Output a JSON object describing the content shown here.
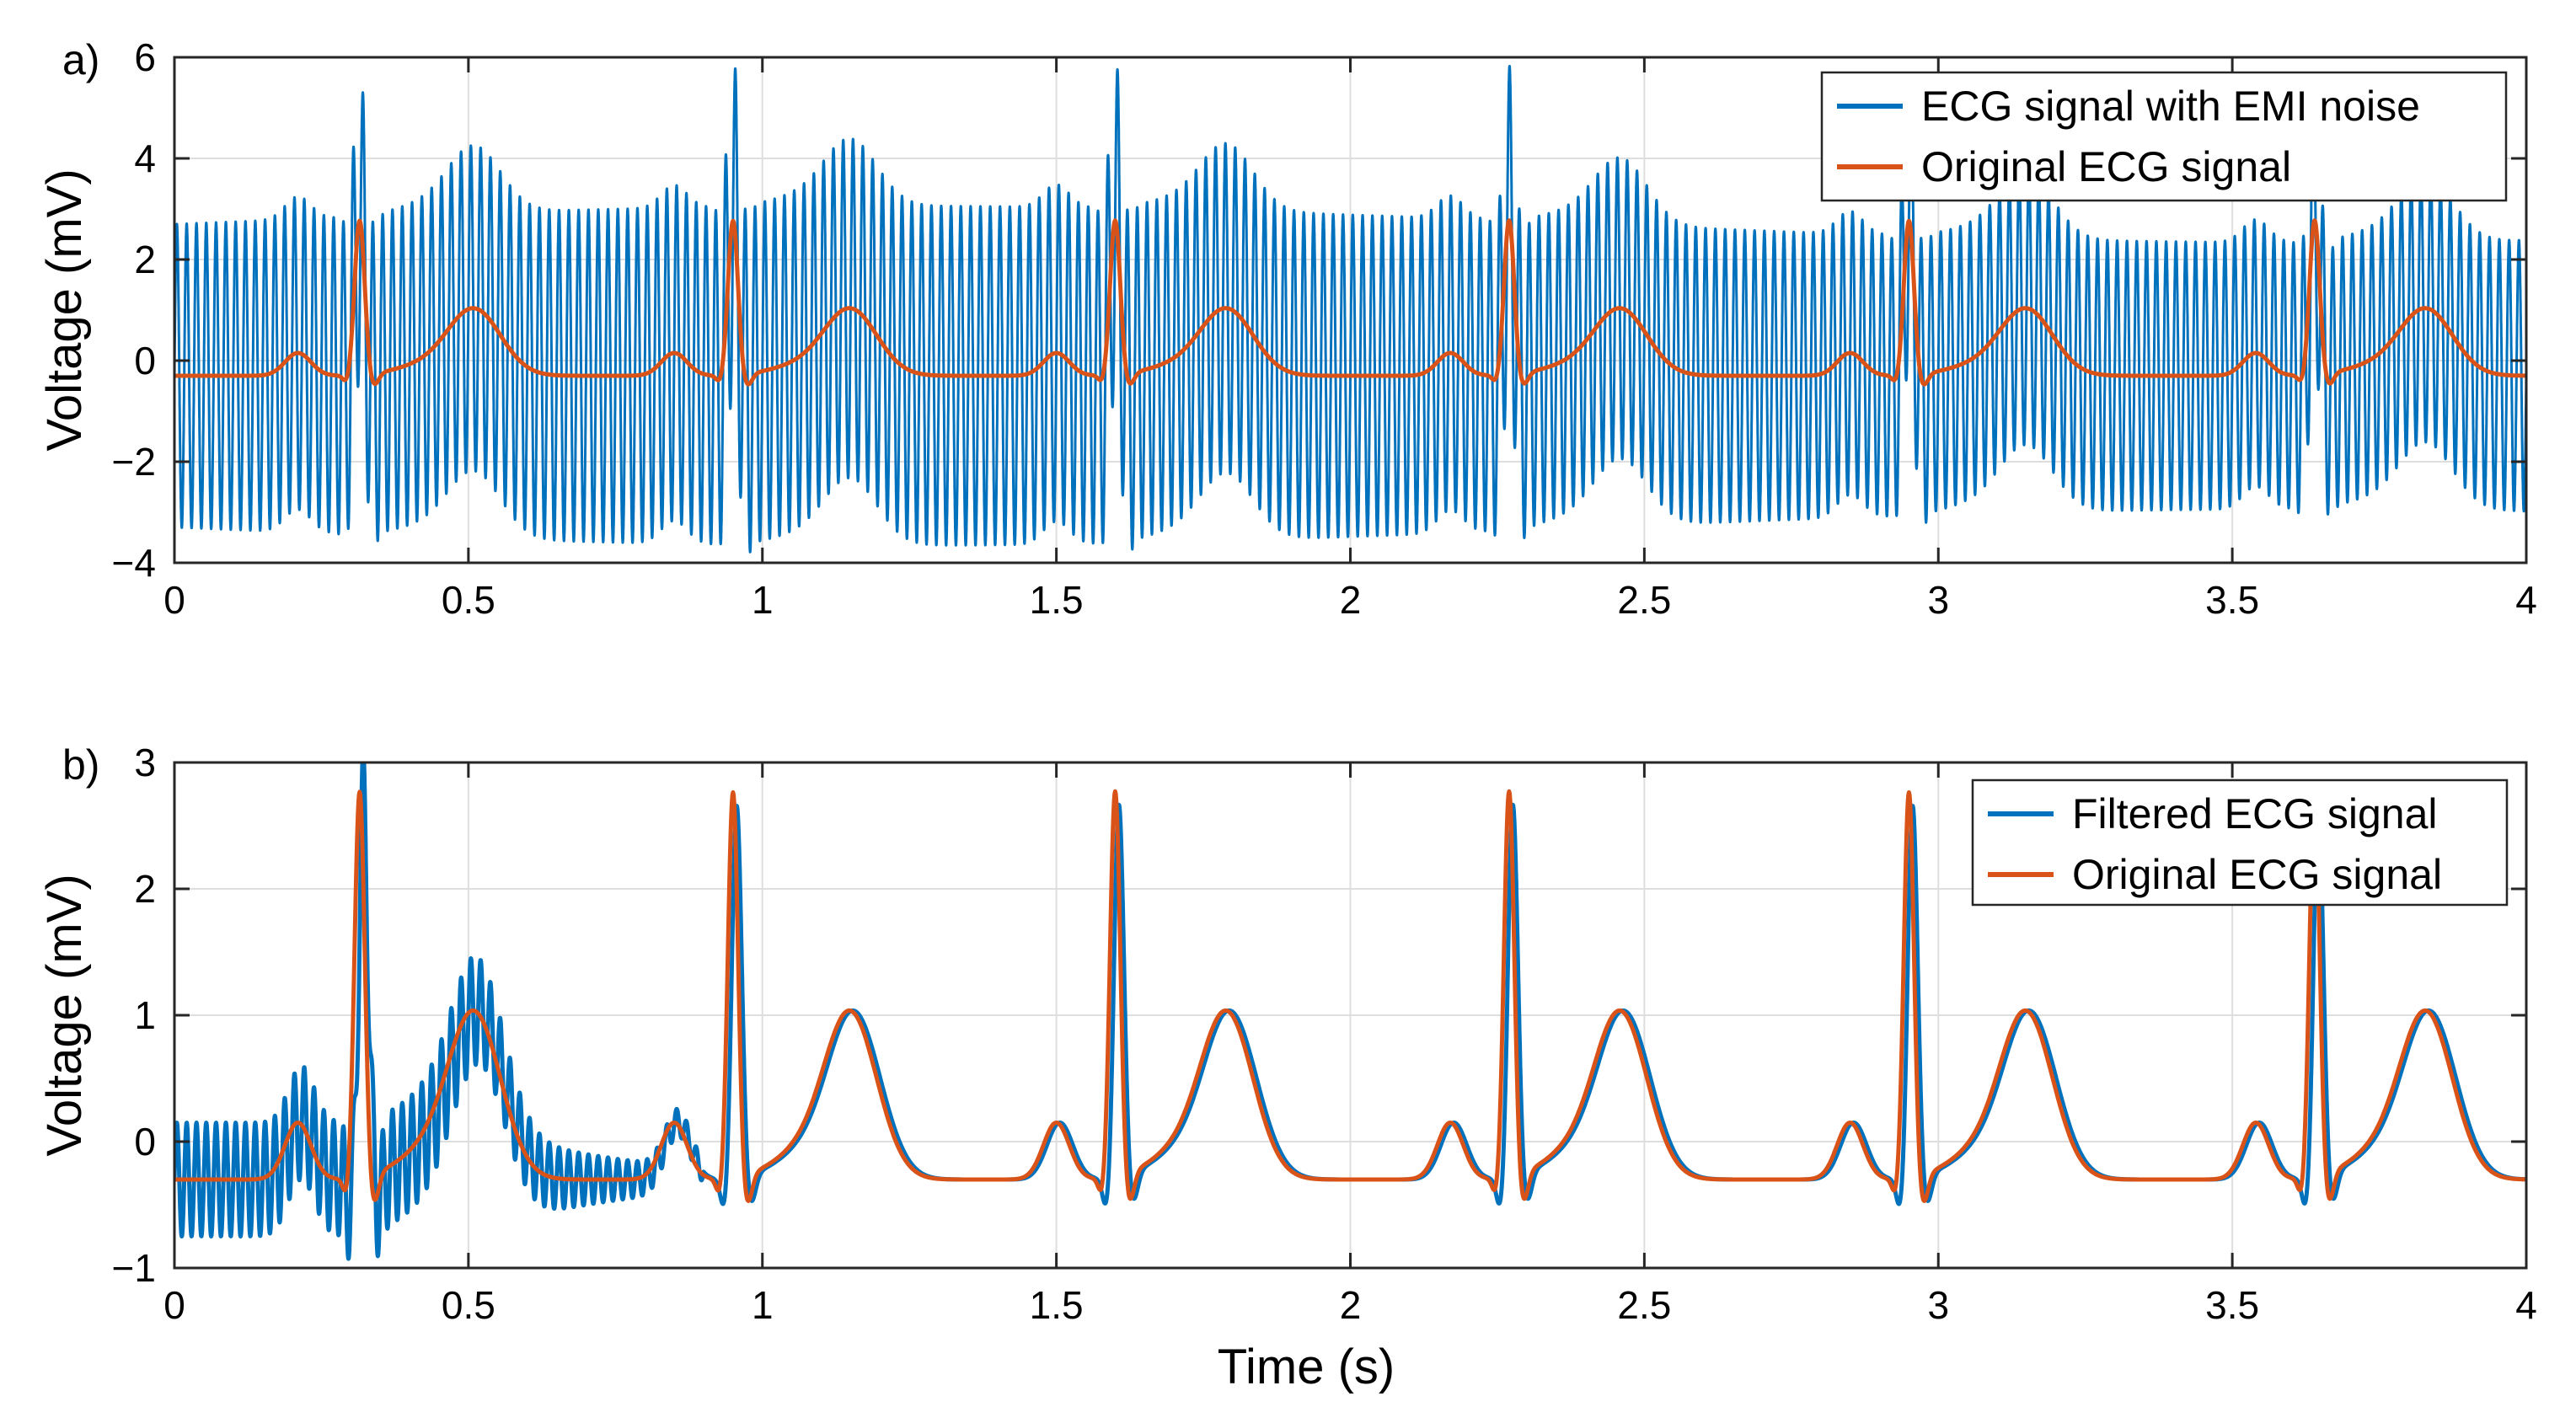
{
  "colors": {
    "noisy": "#0072BD",
    "original": "#D95319",
    "filtered": "#0072BD",
    "grid": "#dedede",
    "axis": "#262626"
  },
  "chart_data": [
    {
      "type": "line",
      "panel_label": "a)",
      "xlabel": "",
      "ylabel": "Voltage (mV)",
      "xlim": [
        0,
        4
      ],
      "ylim": [
        -4,
        6
      ],
      "xticks": [
        0,
        0.5,
        1,
        1.5,
        2,
        2.5,
        3,
        3.5,
        4
      ],
      "xtick_labels": [
        "0",
        "0.5",
        "1",
        "1.5",
        "2",
        "2.5",
        "3",
        "3.5",
        "4"
      ],
      "yticks": [
        -4,
        -2,
        0,
        2,
        4,
        6
      ],
      "ytick_labels": [
        "−4",
        "−2",
        "0",
        "2",
        "4",
        "6"
      ],
      "grid": true,
      "legend_position": "top-right",
      "ecg_beats": [
        {
          "p": 0.21,
          "r": 0.315,
          "t": 0.51
        },
        {
          "p": 0.85,
          "r": 0.95,
          "t": 1.15
        },
        {
          "p": 1.5,
          "r": 1.6,
          "t": 1.79
        },
        {
          "p": 2.17,
          "r": 2.27,
          "t": 2.46
        },
        {
          "p": 2.85,
          "r": 2.95,
          "t": 3.15
        },
        {
          "p": 3.54,
          "r": 3.64,
          "t": 3.83
        }
      ],
      "series": [
        {
          "name": "ECG signal with EMI noise",
          "color_key": "noisy",
          "kind": "noisy",
          "noise_amplitude_mv": 3.0,
          "noise_cycles_per_second": 60,
          "noise_duration_s": 4
        },
        {
          "name": "Original ECG signal",
          "color_key": "original",
          "kind": "clean",
          "r_peak_mv": 2.6,
          "baseline_mv": -0.3
        }
      ]
    },
    {
      "type": "line",
      "panel_label": "b)",
      "xlabel": "Time (s)",
      "ylabel": "Voltage (mV)",
      "xlim": [
        0,
        4
      ],
      "ylim": [
        -1,
        3
      ],
      "xticks": [
        0,
        0.5,
        1,
        1.5,
        2,
        2.5,
        3,
        3.5,
        4
      ],
      "xtick_labels": [
        "0",
        "0.5",
        "1",
        "1.5",
        "2",
        "2.5",
        "3",
        "3.5",
        "4"
      ],
      "yticks": [
        -1,
        0,
        1,
        2,
        3
      ],
      "ytick_labels": [
        "−1",
        "0",
        "1",
        "2",
        "3"
      ],
      "grid": true,
      "legend_position": "top-right",
      "ecg_beats": [
        {
          "p": 0.21,
          "r": 0.315,
          "t": 0.51
        },
        {
          "p": 0.85,
          "r": 0.95,
          "t": 1.15
        },
        {
          "p": 1.5,
          "r": 1.6,
          "t": 1.79
        },
        {
          "p": 2.17,
          "r": 2.27,
          "t": 2.46
        },
        {
          "p": 2.85,
          "r": 2.95,
          "t": 3.15
        },
        {
          "p": 3.54,
          "r": 3.64,
          "t": 3.83
        }
      ],
      "series": [
        {
          "name": "Filtered ECG signal",
          "color_key": "filtered",
          "kind": "filtered",
          "residual_noise_mv": 0.45,
          "residual_noise_until_s": 0.9,
          "lag_s": 0.006
        },
        {
          "name": "Original ECG signal",
          "color_key": "original",
          "kind": "clean",
          "r_peak_mv": 2.6,
          "baseline_mv": -0.3
        }
      ]
    }
  ]
}
